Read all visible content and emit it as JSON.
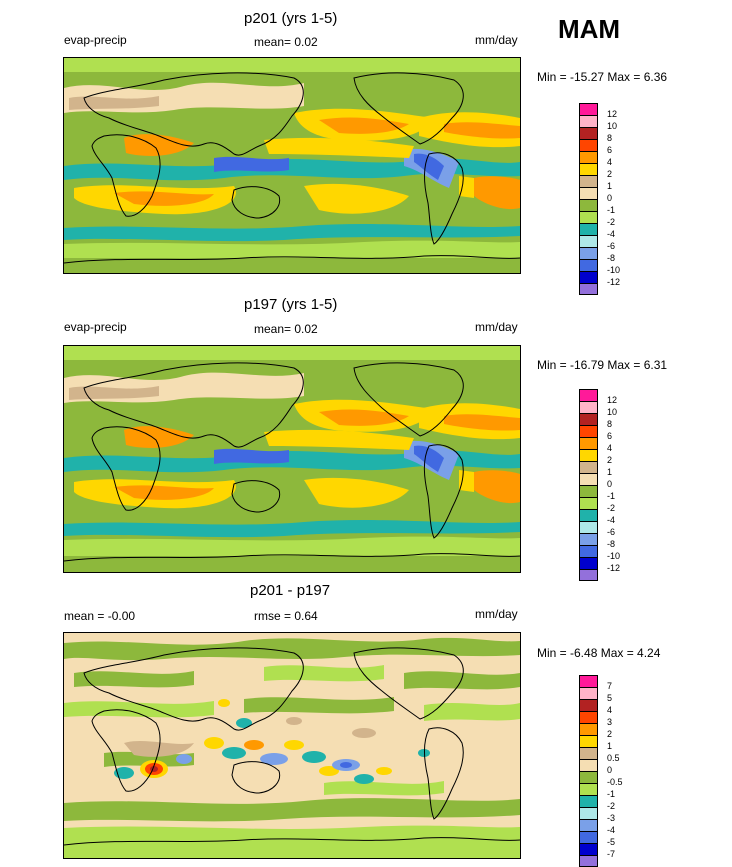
{
  "season": "MAM",
  "palette": {
    "c1": "#ff1a99",
    "c2": "#ffb3c8",
    "c3": "#b22222",
    "c4": "#ff4500",
    "c5": "#ff9900",
    "c6": "#ffd700",
    "c7": "#d2b48c",
    "c8": "#f5deb3",
    "c9": "#8db83c",
    "c10": "#b0e050",
    "c11": "#20b2aa",
    "c12": "#aee8e8",
    "c13": "#7aa0e8",
    "c14": "#4169e1",
    "c15": "#0000cd",
    "c16": "#9370db"
  },
  "panels": [
    {
      "title": "p201 (yrs 1-5)",
      "left_label": "evap-precip",
      "center_label": "mean=  0.02",
      "right_label": "mm/day",
      "minmax": "Min = -15.27 Max =   6.36",
      "levels": [
        "12",
        "10",
        "8",
        "6",
        "4",
        "2",
        "1",
        "0",
        "-1",
        "-2",
        "-4",
        "-6",
        "-8",
        "-10",
        "-12"
      ]
    },
    {
      "title": "p197 (yrs 1-5)",
      "left_label": "evap-precip",
      "center_label": "mean=  0.02",
      "right_label": "mm/day",
      "minmax": "Min = -16.79 Max =   6.31",
      "levels": [
        "12",
        "10",
        "8",
        "6",
        "4",
        "2",
        "1",
        "0",
        "-1",
        "-2",
        "-4",
        "-6",
        "-8",
        "-10",
        "-12"
      ]
    },
    {
      "title": "p201 - p197",
      "left_label": "mean =  -0.00",
      "center_label": "rmse =   0.64",
      "right_label": "mm/day",
      "minmax": "Min =  -6.48 Max =   4.24",
      "levels": [
        "7",
        "5",
        "4",
        "3",
        "2",
        "1",
        "0.5",
        "0",
        "-0.5",
        "-1",
        "-2",
        "-3",
        "-4",
        "-5",
        "-7"
      ]
    }
  ]
}
